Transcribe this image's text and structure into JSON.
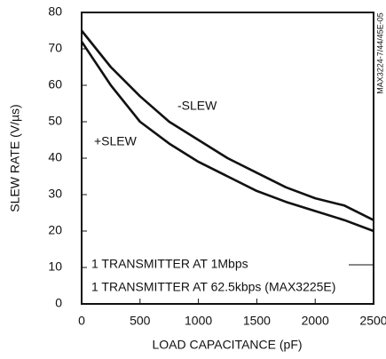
{
  "chart_data": {
    "type": "line",
    "y_label": "SLEW RATE (V/µs)",
    "x_label": "LOAD CAPACITANCE (pF)",
    "x": [
      0,
      250,
      500,
      750,
      1000,
      1250,
      1500,
      1750,
      2000,
      2250,
      2500
    ],
    "series": [
      {
        "name": "-SLEW",
        "color": "#111111",
        "values": [
          75,
          65,
          57,
          50,
          45,
          40,
          36,
          32,
          29,
          27,
          23
        ]
      },
      {
        "name": "+SLEW",
        "color": "#111111",
        "values": [
          72,
          60,
          50,
          44,
          39,
          35,
          31,
          28,
          25.5,
          23,
          20
        ]
      }
    ],
    "annotations": [
      "1 TRANSMITTER AT 1Mbps",
      "1 TRANSMITTER AT 62.5kbps (MAX3225E)",
      "MAX3224-7/44/45E-05"
    ],
    "xlim": [
      0,
      2500
    ],
    "xticks": [
      0,
      500,
      1000,
      1500,
      2000,
      2500
    ],
    "ylim": [
      0,
      80
    ],
    "yticks": [
      0,
      10,
      20,
      30,
      40,
      50,
      60,
      70,
      80
    ],
    "grid": false
  }
}
